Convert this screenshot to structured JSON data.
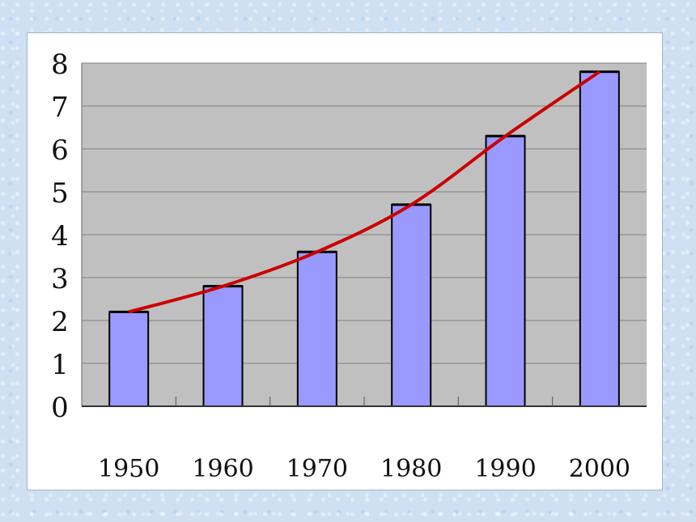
{
  "chart_data": {
    "type": "bar",
    "categories": [
      "1950",
      "1960",
      "1970",
      "1980",
      "1990",
      "2000"
    ],
    "values": [
      2.2,
      2.8,
      3.6,
      4.7,
      6.3,
      7.8
    ],
    "line_values": [
      2.2,
      2.8,
      3.6,
      4.7,
      6.3,
      7.8
    ],
    "title": "",
    "xlabel": "",
    "ylabel": "",
    "ylim": [
      0,
      8
    ],
    "yticks": [
      "0",
      "1",
      "2",
      "3",
      "4",
      "5",
      "6",
      "7",
      "8"
    ],
    "grid": true,
    "legend": "none",
    "colors": {
      "plot_background": "#c0c0c0",
      "bar_fill": "#9999ff",
      "bar_stroke": "#000000",
      "line": "#cc0000",
      "gridline": "#808080"
    }
  }
}
